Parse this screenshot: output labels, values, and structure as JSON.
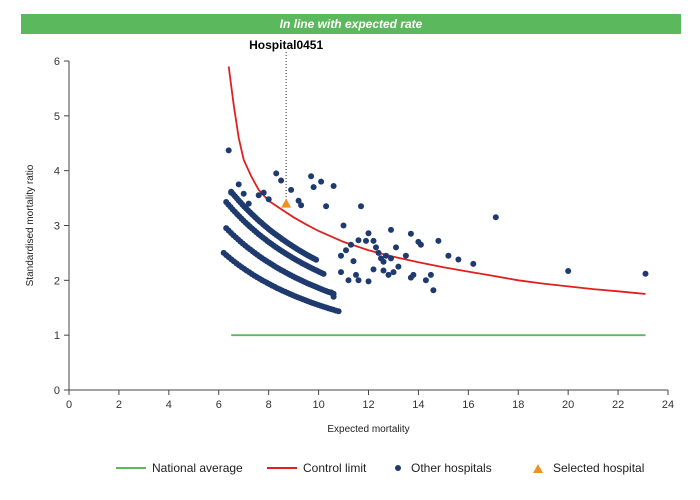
{
  "banner": {
    "text": "In line with expected rate",
    "color": "#5cb85c"
  },
  "chart_data": {
    "type": "scatter",
    "title": "",
    "xlabel": "Expected mortality",
    "ylabel": "Standardised mortality ratio",
    "xlim": [
      0,
      24
    ],
    "ylim": [
      0,
      6
    ],
    "xticks": [
      0,
      2,
      4,
      6,
      8,
      10,
      12,
      14,
      16,
      18,
      20,
      22,
      24
    ],
    "yticks": [
      0,
      1,
      2,
      3,
      4,
      5,
      6
    ],
    "grid": false,
    "legend_position": "bottom",
    "annotation": {
      "text": "Hospital0451",
      "x": 8.7
    },
    "series": [
      {
        "name": "National average",
        "kind": "line",
        "color": "#5cb85c",
        "points": [
          [
            6.5,
            1.0
          ],
          [
            23.1,
            1.0
          ]
        ]
      },
      {
        "name": "Control limit",
        "kind": "line",
        "color": "#e02020",
        "points": [
          [
            6.4,
            5.9
          ],
          [
            6.6,
            5.2
          ],
          [
            6.8,
            4.6
          ],
          [
            7.0,
            4.2
          ],
          [
            7.3,
            3.9
          ],
          [
            7.6,
            3.65
          ],
          [
            8.0,
            3.45
          ],
          [
            8.5,
            3.3
          ],
          [
            9.0,
            3.15
          ],
          [
            9.5,
            3.02
          ],
          [
            10.0,
            2.9
          ],
          [
            11.0,
            2.7
          ],
          [
            12.0,
            2.55
          ],
          [
            13.0,
            2.43
          ],
          [
            14.0,
            2.33
          ],
          [
            15.0,
            2.24
          ],
          [
            16.0,
            2.16
          ],
          [
            17.0,
            2.08
          ],
          [
            18.0,
            2.0
          ],
          [
            19.0,
            1.94
          ],
          [
            20.0,
            1.89
          ],
          [
            21.0,
            1.84
          ],
          [
            22.0,
            1.8
          ],
          [
            23.1,
            1.75
          ]
        ]
      },
      {
        "name": "Other hospitals",
        "kind": "points",
        "color": "#1f3a6e",
        "curves": [
          {
            "x_start": 6.2,
            "x_end": 10.8,
            "k": 15.5
          },
          {
            "x_start": 6.3,
            "x_end": 10.6,
            "k": 18.6
          },
          {
            "x_start": 6.3,
            "x_end": 10.2,
            "k": 21.6
          },
          {
            "x_start": 6.5,
            "x_end": 9.9,
            "k": 23.5
          }
        ],
        "points": [
          [
            6.4,
            4.37
          ],
          [
            6.5,
            3.6
          ],
          [
            6.8,
            3.75
          ],
          [
            7.0,
            3.58
          ],
          [
            7.2,
            3.4
          ],
          [
            7.6,
            3.55
          ],
          [
            7.8,
            3.6
          ],
          [
            8.0,
            3.48
          ],
          [
            8.3,
            3.95
          ],
          [
            8.5,
            3.82
          ],
          [
            8.9,
            3.65
          ],
          [
            9.2,
            3.45
          ],
          [
            9.3,
            3.37
          ],
          [
            9.7,
            3.9
          ],
          [
            9.8,
            3.7
          ],
          [
            10.1,
            3.8
          ],
          [
            10.3,
            3.35
          ],
          [
            10.6,
            3.72
          ],
          [
            11.0,
            3.0
          ],
          [
            11.3,
            2.65
          ],
          [
            11.5,
            2.1
          ],
          [
            11.6,
            2.73
          ],
          [
            11.7,
            3.35
          ],
          [
            11.9,
            2.72
          ],
          [
            12.0,
            2.86
          ],
          [
            12.2,
            2.72
          ],
          [
            12.3,
            2.6
          ],
          [
            12.4,
            2.5
          ],
          [
            12.5,
            2.4
          ],
          [
            12.6,
            2.34
          ],
          [
            12.8,
            2.1
          ],
          [
            12.9,
            2.92
          ],
          [
            13.1,
            2.6
          ],
          [
            13.5,
            2.45
          ],
          [
            13.7,
            2.85
          ],
          [
            13.7,
            2.05
          ],
          [
            14.0,
            2.7
          ],
          [
            14.1,
            2.65
          ],
          [
            14.5,
            2.1
          ],
          [
            14.6,
            1.82
          ],
          [
            14.8,
            2.72
          ],
          [
            15.2,
            2.45
          ],
          [
            15.6,
            2.38
          ],
          [
            16.2,
            2.3
          ],
          [
            17.1,
            3.15
          ],
          [
            20.0,
            2.17
          ],
          [
            23.1,
            2.12
          ],
          [
            10.5,
            1.78
          ],
          [
            10.6,
            1.7
          ],
          [
            11.2,
            2.0
          ],
          [
            11.6,
            2.0
          ],
          [
            12.0,
            1.98
          ],
          [
            12.9,
            2.4
          ],
          [
            13.0,
            2.15
          ],
          [
            13.8,
            2.1
          ],
          [
            14.3,
            2.0
          ],
          [
            12.6,
            2.18
          ],
          [
            11.4,
            2.35
          ],
          [
            10.9,
            2.45
          ],
          [
            10.9,
            2.15
          ],
          [
            11.1,
            2.55
          ],
          [
            12.2,
            2.2
          ],
          [
            13.2,
            2.25
          ],
          [
            12.7,
            2.45
          ]
        ]
      },
      {
        "name": "Selected hospital",
        "kind": "marker",
        "color": "#f0921e",
        "points": [
          [
            8.7,
            3.4
          ]
        ]
      }
    ]
  },
  "legend": [
    {
      "label": "National average"
    },
    {
      "label": "Control limit"
    },
    {
      "label": "Other hospitals"
    },
    {
      "label": "Selected hospital"
    }
  ]
}
